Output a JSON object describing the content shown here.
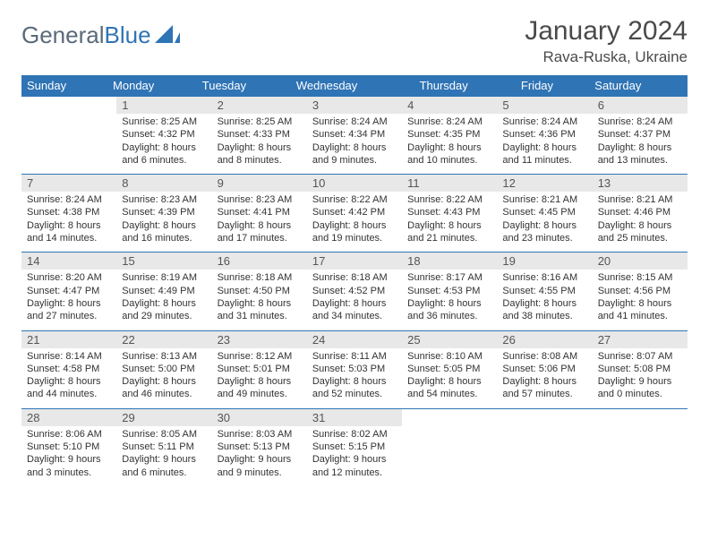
{
  "colors": {
    "header_bg": "#2f74b5",
    "header_text": "#ffffff",
    "daynum_bg": "#e8e8e8",
    "daynum_text": "#555555",
    "body_text": "#333333",
    "rule": "#2f74b5",
    "page_bg": "#ffffff",
    "logo_gray": "#5a6a7a",
    "logo_blue": "#2f74b5"
  },
  "typography": {
    "title_fontsize": 30,
    "location_fontsize": 17,
    "dow_fontsize": 13,
    "daynum_fontsize": 13,
    "cell_fontsize": 11,
    "font_family": "Arial"
  },
  "logo": {
    "part1": "General",
    "part2": "Blue"
  },
  "title": "January 2024",
  "location": "Rava-Ruska, Ukraine",
  "days_of_week": [
    "Sunday",
    "Monday",
    "Tuesday",
    "Wednesday",
    "Thursday",
    "Friday",
    "Saturday"
  ],
  "weeks": [
    [
      {
        "n": "",
        "sunrise": "",
        "sunset": "",
        "daylight": ""
      },
      {
        "n": "1",
        "sunrise": "Sunrise: 8:25 AM",
        "sunset": "Sunset: 4:32 PM",
        "daylight": "Daylight: 8 hours and 6 minutes."
      },
      {
        "n": "2",
        "sunrise": "Sunrise: 8:25 AM",
        "sunset": "Sunset: 4:33 PM",
        "daylight": "Daylight: 8 hours and 8 minutes."
      },
      {
        "n": "3",
        "sunrise": "Sunrise: 8:24 AM",
        "sunset": "Sunset: 4:34 PM",
        "daylight": "Daylight: 8 hours and 9 minutes."
      },
      {
        "n": "4",
        "sunrise": "Sunrise: 8:24 AM",
        "sunset": "Sunset: 4:35 PM",
        "daylight": "Daylight: 8 hours and 10 minutes."
      },
      {
        "n": "5",
        "sunrise": "Sunrise: 8:24 AM",
        "sunset": "Sunset: 4:36 PM",
        "daylight": "Daylight: 8 hours and 11 minutes."
      },
      {
        "n": "6",
        "sunrise": "Sunrise: 8:24 AM",
        "sunset": "Sunset: 4:37 PM",
        "daylight": "Daylight: 8 hours and 13 minutes."
      }
    ],
    [
      {
        "n": "7",
        "sunrise": "Sunrise: 8:24 AM",
        "sunset": "Sunset: 4:38 PM",
        "daylight": "Daylight: 8 hours and 14 minutes."
      },
      {
        "n": "8",
        "sunrise": "Sunrise: 8:23 AM",
        "sunset": "Sunset: 4:39 PM",
        "daylight": "Daylight: 8 hours and 16 minutes."
      },
      {
        "n": "9",
        "sunrise": "Sunrise: 8:23 AM",
        "sunset": "Sunset: 4:41 PM",
        "daylight": "Daylight: 8 hours and 17 minutes."
      },
      {
        "n": "10",
        "sunrise": "Sunrise: 8:22 AM",
        "sunset": "Sunset: 4:42 PM",
        "daylight": "Daylight: 8 hours and 19 minutes."
      },
      {
        "n": "11",
        "sunrise": "Sunrise: 8:22 AM",
        "sunset": "Sunset: 4:43 PM",
        "daylight": "Daylight: 8 hours and 21 minutes."
      },
      {
        "n": "12",
        "sunrise": "Sunrise: 8:21 AM",
        "sunset": "Sunset: 4:45 PM",
        "daylight": "Daylight: 8 hours and 23 minutes."
      },
      {
        "n": "13",
        "sunrise": "Sunrise: 8:21 AM",
        "sunset": "Sunset: 4:46 PM",
        "daylight": "Daylight: 8 hours and 25 minutes."
      }
    ],
    [
      {
        "n": "14",
        "sunrise": "Sunrise: 8:20 AM",
        "sunset": "Sunset: 4:47 PM",
        "daylight": "Daylight: 8 hours and 27 minutes."
      },
      {
        "n": "15",
        "sunrise": "Sunrise: 8:19 AM",
        "sunset": "Sunset: 4:49 PM",
        "daylight": "Daylight: 8 hours and 29 minutes."
      },
      {
        "n": "16",
        "sunrise": "Sunrise: 8:18 AM",
        "sunset": "Sunset: 4:50 PM",
        "daylight": "Daylight: 8 hours and 31 minutes."
      },
      {
        "n": "17",
        "sunrise": "Sunrise: 8:18 AM",
        "sunset": "Sunset: 4:52 PM",
        "daylight": "Daylight: 8 hours and 34 minutes."
      },
      {
        "n": "18",
        "sunrise": "Sunrise: 8:17 AM",
        "sunset": "Sunset: 4:53 PM",
        "daylight": "Daylight: 8 hours and 36 minutes."
      },
      {
        "n": "19",
        "sunrise": "Sunrise: 8:16 AM",
        "sunset": "Sunset: 4:55 PM",
        "daylight": "Daylight: 8 hours and 38 minutes."
      },
      {
        "n": "20",
        "sunrise": "Sunrise: 8:15 AM",
        "sunset": "Sunset: 4:56 PM",
        "daylight": "Daylight: 8 hours and 41 minutes."
      }
    ],
    [
      {
        "n": "21",
        "sunrise": "Sunrise: 8:14 AM",
        "sunset": "Sunset: 4:58 PM",
        "daylight": "Daylight: 8 hours and 44 minutes."
      },
      {
        "n": "22",
        "sunrise": "Sunrise: 8:13 AM",
        "sunset": "Sunset: 5:00 PM",
        "daylight": "Daylight: 8 hours and 46 minutes."
      },
      {
        "n": "23",
        "sunrise": "Sunrise: 8:12 AM",
        "sunset": "Sunset: 5:01 PM",
        "daylight": "Daylight: 8 hours and 49 minutes."
      },
      {
        "n": "24",
        "sunrise": "Sunrise: 8:11 AM",
        "sunset": "Sunset: 5:03 PM",
        "daylight": "Daylight: 8 hours and 52 minutes."
      },
      {
        "n": "25",
        "sunrise": "Sunrise: 8:10 AM",
        "sunset": "Sunset: 5:05 PM",
        "daylight": "Daylight: 8 hours and 54 minutes."
      },
      {
        "n": "26",
        "sunrise": "Sunrise: 8:08 AM",
        "sunset": "Sunset: 5:06 PM",
        "daylight": "Daylight: 8 hours and 57 minutes."
      },
      {
        "n": "27",
        "sunrise": "Sunrise: 8:07 AM",
        "sunset": "Sunset: 5:08 PM",
        "daylight": "Daylight: 9 hours and 0 minutes."
      }
    ],
    [
      {
        "n": "28",
        "sunrise": "Sunrise: 8:06 AM",
        "sunset": "Sunset: 5:10 PM",
        "daylight": "Daylight: 9 hours and 3 minutes."
      },
      {
        "n": "29",
        "sunrise": "Sunrise: 8:05 AM",
        "sunset": "Sunset: 5:11 PM",
        "daylight": "Daylight: 9 hours and 6 minutes."
      },
      {
        "n": "30",
        "sunrise": "Sunrise: 8:03 AM",
        "sunset": "Sunset: 5:13 PM",
        "daylight": "Daylight: 9 hours and 9 minutes."
      },
      {
        "n": "31",
        "sunrise": "Sunrise: 8:02 AM",
        "sunset": "Sunset: 5:15 PM",
        "daylight": "Daylight: 9 hours and 12 minutes."
      },
      {
        "n": "",
        "sunrise": "",
        "sunset": "",
        "daylight": ""
      },
      {
        "n": "",
        "sunrise": "",
        "sunset": "",
        "daylight": ""
      },
      {
        "n": "",
        "sunrise": "",
        "sunset": "",
        "daylight": ""
      }
    ]
  ]
}
